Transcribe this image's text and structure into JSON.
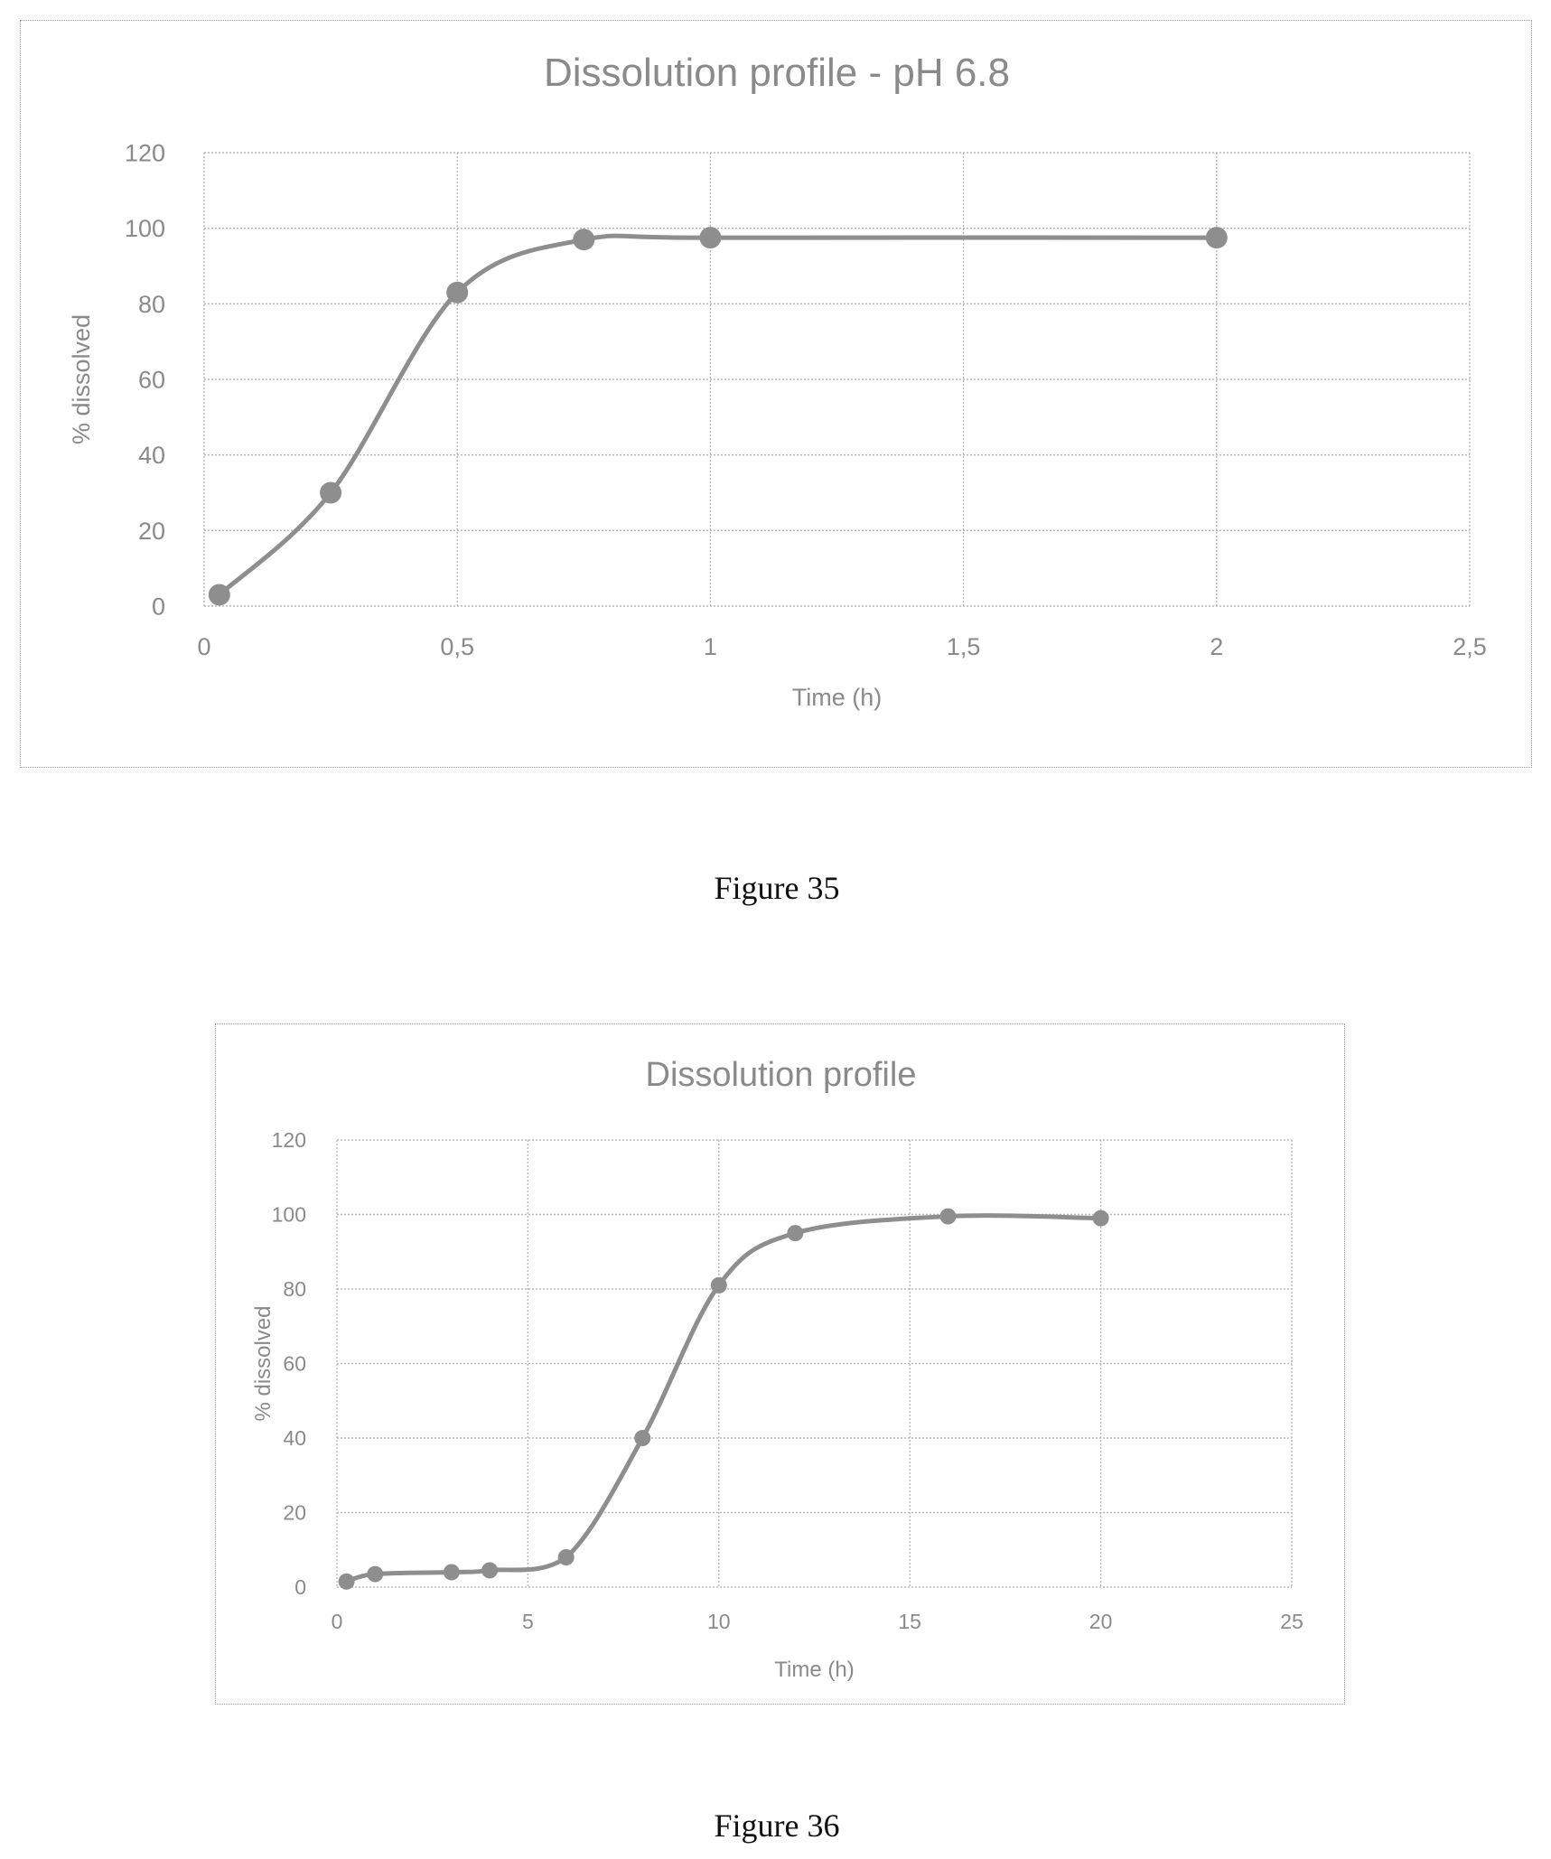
{
  "chart_data": [
    {
      "type": "line",
      "title": "Dissolution profile - pH 6.8",
      "xlabel": "Time (h)",
      "ylabel": "% dissolved",
      "xlim": [
        0,
        2.5
      ],
      "ylim": [
        0,
        120
      ],
      "x_ticks": [
        "0",
        "0,5",
        "1",
        "1,5",
        "2",
        "2,5"
      ],
      "y_ticks": [
        "0",
        "20",
        "40",
        "60",
        "80",
        "100",
        "120"
      ],
      "grid": true,
      "smooth": true,
      "series": [
        {
          "x": [
            0.03,
            0.25,
            0.5,
            0.75,
            1,
            2
          ],
          "y": [
            3,
            30,
            83,
            97,
            97.5,
            97.5
          ],
          "color": "#8e8e8e"
        }
      ]
    },
    {
      "type": "line",
      "title": "Dissolution profile",
      "xlabel": "Time (h)",
      "ylabel": "% dissolved",
      "xlim": [
        0,
        25
      ],
      "ylim": [
        0,
        120
      ],
      "x_ticks": [
        "0",
        "5",
        "10",
        "15",
        "20",
        "25"
      ],
      "y_ticks": [
        "0",
        "20",
        "40",
        "60",
        "80",
        "100",
        "120"
      ],
      "grid": true,
      "smooth": true,
      "series": [
        {
          "x": [
            0.25,
            1,
            3,
            4,
            6,
            8,
            10,
            12,
            16,
            20
          ],
          "y": [
            1.5,
            3.5,
            4,
            4.5,
            8,
            40,
            81,
            95,
            99.5,
            99
          ],
          "color": "#8e8e8e"
        }
      ]
    }
  ],
  "captions": {
    "fig35": "Figure 35",
    "fig36": "Figure 36"
  }
}
